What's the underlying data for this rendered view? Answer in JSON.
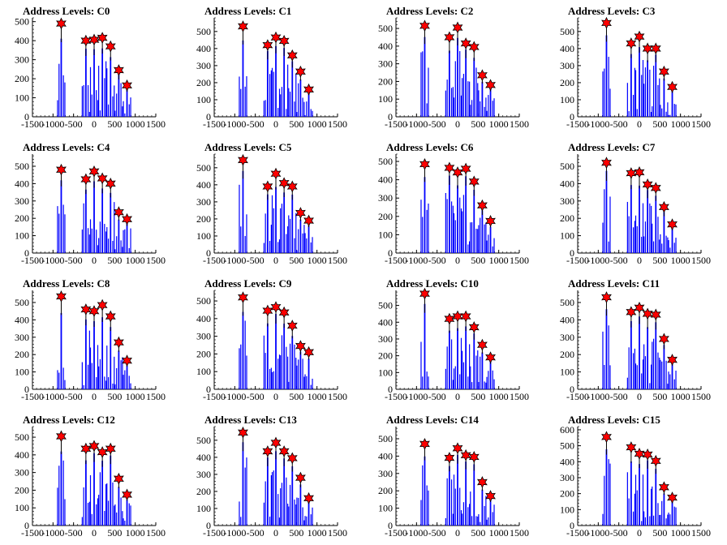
{
  "chart_data": [
    {
      "type": "bar",
      "title": "Address Levels: C0",
      "xlim": [
        -1500,
        1500
      ],
      "ylim": [
        0,
        520
      ],
      "yticks": [
        0,
        100,
        200,
        300,
        400,
        500
      ],
      "xticks": [
        -1500,
        -1000,
        -500,
        0,
        500,
        1000,
        1500
      ],
      "peaks_x": [
        -800,
        -200,
        0,
        200,
        400,
        600,
        800
      ],
      "peaks_y": [
        490,
        400,
        405,
        415,
        370,
        245,
        165
      ]
    },
    {
      "type": "bar",
      "title": "Address Levels: C1",
      "xlim": [
        -1500,
        1500
      ],
      "ylim": [
        0,
        580
      ],
      "yticks": [
        0,
        100,
        200,
        300,
        400,
        500
      ],
      "xticks": [
        -1500,
        -1000,
        -500,
        0,
        500,
        1000,
        1500
      ],
      "peaks_x": [
        -800,
        -200,
        0,
        200,
        400,
        600,
        800
      ],
      "peaks_y": [
        530,
        420,
        465,
        445,
        360,
        265,
        160
      ]
    },
    {
      "type": "bar",
      "title": "Address Levels: C2",
      "xlim": [
        -1500,
        1500
      ],
      "ylim": [
        0,
        560
      ],
      "yticks": [
        0,
        100,
        200,
        300,
        400,
        500
      ],
      "xticks": [
        -1500,
        -1000,
        -500,
        0,
        500,
        1000,
        1500
      ],
      "peaks_x": [
        -800,
        -200,
        0,
        200,
        400,
        600,
        800
      ],
      "peaks_y": [
        515,
        450,
        505,
        415,
        395,
        235,
        180
      ]
    },
    {
      "type": "bar",
      "title": "Address Levels: C3",
      "xlim": [
        -1500,
        1500
      ],
      "ylim": [
        0,
        580
      ],
      "yticks": [
        0,
        100,
        200,
        300,
        400,
        500
      ],
      "xticks": [
        -1500,
        -1000,
        -500,
        0,
        500,
        1000,
        1500
      ],
      "peaks_x": [
        -800,
        -200,
        0,
        200,
        400,
        600,
        800
      ],
      "peaks_y": [
        550,
        430,
        470,
        400,
        400,
        265,
        175
      ]
    },
    {
      "type": "bar",
      "title": "Address Levels: C4",
      "xlim": [
        -1500,
        1500
      ],
      "ylim": [
        0,
        570
      ],
      "yticks": [
        0,
        100,
        200,
        300,
        400,
        500
      ],
      "xticks": [
        -1500,
        -1000,
        -500,
        0,
        500,
        1000,
        1500
      ],
      "peaks_x": [
        -800,
        -200,
        0,
        200,
        400,
        600,
        800
      ],
      "peaks_y": [
        480,
        425,
        470,
        430,
        400,
        235,
        195
      ]
    },
    {
      "type": "bar",
      "title": "Address Levels: C5",
      "xlim": [
        -1500,
        1500
      ],
      "ylim": [
        0,
        580
      ],
      "yticks": [
        0,
        100,
        200,
        300,
        400,
        500
      ],
      "xticks": [
        -1500,
        -1000,
        -500,
        0,
        500,
        1000,
        1500
      ],
      "peaks_x": [
        -800,
        -200,
        0,
        200,
        400,
        600,
        800
      ],
      "peaks_y": [
        545,
        390,
        465,
        410,
        390,
        235,
        190
      ]
    },
    {
      "type": "bar",
      "title": "Address Levels: C6",
      "xlim": [
        -1500,
        1500
      ],
      "ylim": [
        0,
        540
      ],
      "yticks": [
        0,
        100,
        200,
        300,
        400,
        500
      ],
      "xticks": [
        -1500,
        -1000,
        -500,
        0,
        500,
        1000,
        1500
      ],
      "peaks_x": [
        -800,
        -200,
        0,
        200,
        400,
        600,
        800
      ],
      "peaks_y": [
        485,
        465,
        440,
        460,
        390,
        260,
        175
      ]
    },
    {
      "type": "bar",
      "title": "Address Levels: C7",
      "xlim": [
        -1500,
        1500
      ],
      "ylim": [
        0,
        570
      ],
      "yticks": [
        0,
        100,
        200,
        300,
        400,
        500
      ],
      "xticks": [
        -1500,
        -1000,
        -500,
        0,
        500,
        1000,
        1500
      ],
      "peaks_x": [
        -800,
        -200,
        0,
        200,
        400,
        600,
        800
      ],
      "peaks_y": [
        520,
        460,
        465,
        395,
        375,
        265,
        165
      ]
    },
    {
      "type": "bar",
      "title": "Address Levels: C8",
      "xlim": [
        -1500,
        1500
      ],
      "ylim": [
        0,
        570
      ],
      "yticks": [
        0,
        100,
        200,
        300,
        400,
        500
      ],
      "xticks": [
        -1500,
        -1000,
        -500,
        0,
        500,
        1000,
        1500
      ],
      "peaks_x": [
        -800,
        -200,
        0,
        200,
        400,
        600,
        800
      ],
      "peaks_y": [
        535,
        460,
        450,
        485,
        420,
        270,
        165
      ]
    },
    {
      "type": "bar",
      "title": "Address Levels: C9",
      "xlim": [
        -1500,
        1500
      ],
      "ylim": [
        0,
        560
      ],
      "yticks": [
        0,
        100,
        200,
        300,
        400,
        500
      ],
      "xticks": [
        -1500,
        -1000,
        -500,
        0,
        500,
        1000,
        1500
      ],
      "peaks_x": [
        -800,
        -200,
        0,
        200,
        400,
        600,
        800
      ],
      "peaks_y": [
        520,
        445,
        465,
        435,
        360,
        245,
        210
      ]
    },
    {
      "type": "bar",
      "title": "Address Levels: C10",
      "xlim": [
        -1500,
        1500
      ],
      "ylim": [
        0,
        590
      ],
      "yticks": [
        0,
        100,
        200,
        300,
        400,
        500
      ],
      "xticks": [
        -1500,
        -1000,
        -500,
        0,
        500,
        1000,
        1500
      ],
      "peaks_x": [
        -800,
        -200,
        0,
        200,
        400,
        600,
        800
      ],
      "peaks_y": [
        570,
        420,
        435,
        435,
        370,
        265,
        190
      ]
    },
    {
      "type": "bar",
      "title": "Address Levels: C11",
      "xlim": [
        -1500,
        1500
      ],
      "ylim": [
        0,
        570
      ],
      "yticks": [
        0,
        100,
        200,
        300,
        400,
        500
      ],
      "xticks": [
        -1500,
        -1000,
        -500,
        0,
        500,
        1000,
        1500
      ],
      "peaks_x": [
        -800,
        -200,
        0,
        200,
        400,
        600,
        800
      ],
      "peaks_y": [
        530,
        445,
        470,
        435,
        430,
        290,
        170
      ]
    },
    {
      "type": "bar",
      "title": "Address Levels: C12",
      "xlim": [
        -1500,
        1500
      ],
      "ylim": [
        0,
        560
      ],
      "yticks": [
        0,
        100,
        200,
        300,
        400,
        500
      ],
      "xticks": [
        -1500,
        -1000,
        -500,
        0,
        500,
        1000,
        1500
      ],
      "peaks_x": [
        -800,
        -200,
        0,
        200,
        400,
        600,
        800
      ],
      "peaks_y": [
        505,
        435,
        450,
        415,
        435,
        265,
        175
      ]
    },
    {
      "type": "bar",
      "title": "Address Levels: C13",
      "xlim": [
        -1500,
        1500
      ],
      "ylim": [
        0,
        580
      ],
      "yticks": [
        0,
        100,
        200,
        300,
        400,
        500
      ],
      "xticks": [
        -1500,
        -1000,
        -500,
        0,
        500,
        1000,
        1500
      ],
      "peaks_x": [
        -800,
        -200,
        0,
        200,
        400,
        600,
        800
      ],
      "peaks_y": [
        545,
        435,
        485,
        435,
        395,
        280,
        160
      ]
    },
    {
      "type": "bar",
      "title": "Address Levels: C14",
      "xlim": [
        -1500,
        1500
      ],
      "ylim": [
        0,
        570
      ],
      "yticks": [
        0,
        100,
        200,
        300,
        400,
        500
      ],
      "xticks": [
        -1500,
        -1000,
        -500,
        0,
        500,
        1000,
        1500
      ],
      "peaks_x": [
        -800,
        -200,
        0,
        200,
        400,
        600,
        800
      ],
      "peaks_y": [
        470,
        390,
        445,
        405,
        395,
        250,
        170
      ]
    },
    {
      "type": "bar",
      "title": "Address Levels: C15",
      "xlim": [
        -1500,
        1500
      ],
      "ylim": [
        0,
        620
      ],
      "yticks": [
        0,
        100,
        200,
        300,
        400,
        500,
        600
      ],
      "xticks": [
        -1500,
        -1000,
        -500,
        0,
        500,
        1000,
        1500
      ],
      "peaks_x": [
        -800,
        -200,
        0,
        200,
        400,
        600,
        800
      ],
      "peaks_y": [
        555,
        490,
        450,
        445,
        405,
        240,
        175
      ]
    }
  ],
  "colors": {
    "bars": "#0000ff",
    "tops": "#000000",
    "marker": "#ff0000",
    "marker_edge": "#000000"
  }
}
